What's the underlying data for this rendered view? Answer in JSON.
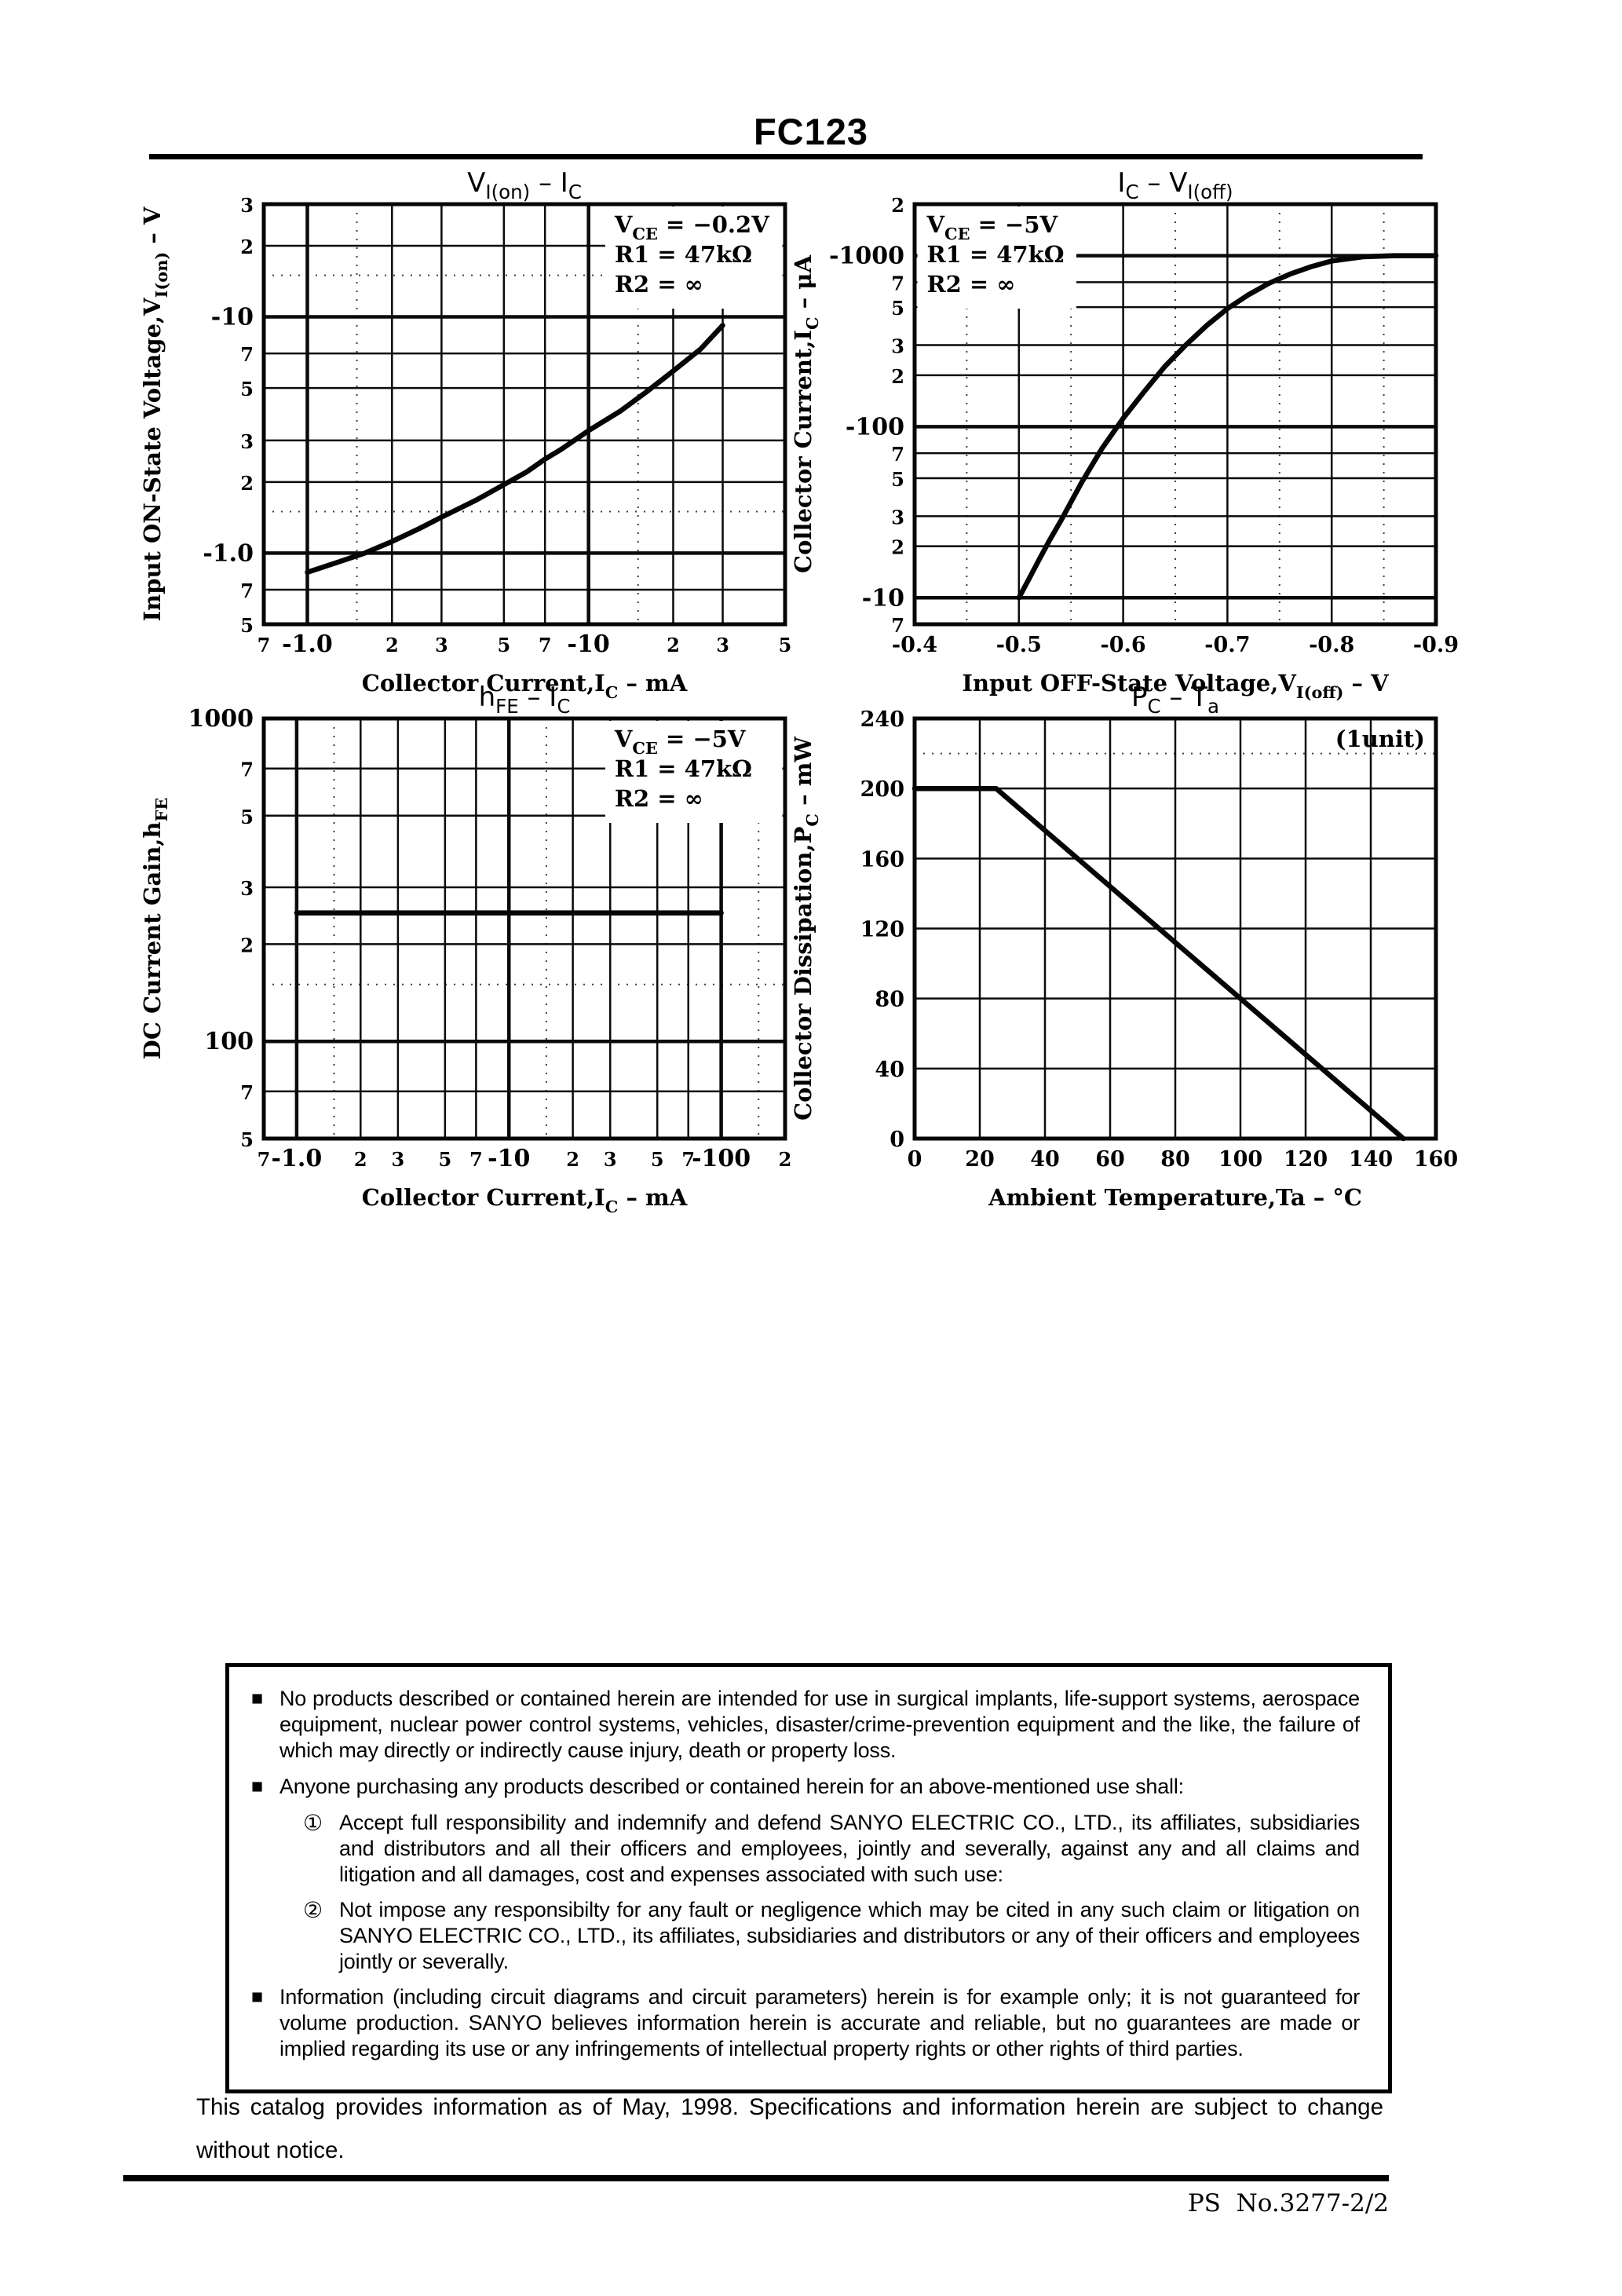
{
  "page": {
    "product": "FC123",
    "footer": {
      "doc_no": "PS  No.3277-2/2"
    },
    "catalog_note": "This catalog provides information as of May, 1998. Specifications and information herein are subject to change without notice.",
    "disclaimer": {
      "bullets": [
        {
          "marker": "■",
          "text": "No products described or contained herein are intended for use in surgical implants, life-support systems, aerospace equipment, nuclear power control systems, vehicles, disaster/crime-prevention equipment and the like, the failure of which may directly or indirectly cause injury, death or property loss."
        },
        {
          "marker": "■",
          "text": "Anyone purchasing any products described or contained herein for an above-mentioned use shall:",
          "items": [
            {
              "marker": "①",
              "text": "Accept full responsibility and indemnify and defend SANYO ELECTRIC CO., LTD., its affiliates, subsidiaries and distributors and all their officers and employees, jointly and severally, against any and all claims and litigation and all damages, cost and expenses associated with such use:"
            },
            {
              "marker": "②",
              "text": "Not impose any responsibilty for any fault or negligence which may be cited in any such claim or litigation on SANYO ELECTRIC CO., LTD., its affiliates, subsidiaries and distributors or any of their officers and employees jointly or severally."
            }
          ]
        },
        {
          "marker": "■",
          "text": "Information (including circuit diagrams and circuit parameters) herein is for example only; it is not guaranteed for volume production. SANYO believes information herein is accurate and reliable, but no guarantees are made or implied regarding its use or any infringements of intellectual property rights or other rights of third parties."
        }
      ]
    }
  },
  "chart_data": [
    {
      "type": "line",
      "title": "VI(on) - IC",
      "xlabel": "Collector Current, IC - mA",
      "ylabel": "Input ON-State Voltage, VI(on) - V",
      "conditions": "VCE = -0.2V, R1 = 47kΩ, R2 = ∞",
      "title_segments": [
        {
          "t": "V"
        },
        {
          "t": "I(on)",
          "sub": true
        },
        {
          "t": "  –  I"
        },
        {
          "t": "C",
          "sub": true
        }
      ],
      "x_axis": {
        "scale": "log",
        "min": -0.7,
        "max": -50,
        "title_segments": [
          {
            "t": "Collector Current,I"
          },
          {
            "t": "C",
            "sub": true
          },
          {
            "t": " – mA"
          }
        ],
        "ticks": [
          {
            "v": -0.7,
            "label": "7",
            "edge": true
          },
          {
            "v": -1.0,
            "label": "-1.0",
            "major": true
          },
          {
            "v": -2,
            "label": "2"
          },
          {
            "v": -3,
            "label": "3"
          },
          {
            "v": -5,
            "label": "5"
          },
          {
            "v": -7,
            "label": "7"
          },
          {
            "v": -10,
            "label": "-10",
            "major": true
          },
          {
            "v": -20,
            "label": "2"
          },
          {
            "v": -30,
            "label": "3"
          },
          {
            "v": -50,
            "label": "5",
            "edge": true
          }
        ],
        "dotted": [
          -1.5,
          -15
        ]
      },
      "y_axis": {
        "scale": "log",
        "min": -0.5,
        "max": -30,
        "title_segments": [
          {
            "t": "Input ON-State Voltage,V"
          },
          {
            "t": "I(on)",
            "sub": true
          },
          {
            "t": " – V"
          }
        ],
        "ticks": [
          {
            "v": -30,
            "label": "3",
            "edge": true
          },
          {
            "v": -20,
            "label": "2"
          },
          {
            "v": -10,
            "label": "-10",
            "major": true
          },
          {
            "v": -7,
            "label": "7"
          },
          {
            "v": -5,
            "label": "5"
          },
          {
            "v": -3,
            "label": "3"
          },
          {
            "v": -2,
            "label": "2"
          },
          {
            "v": -1.0,
            "label": "-1.0",
            "major": true
          },
          {
            "v": -0.7,
            "label": "7"
          },
          {
            "v": -0.5,
            "label": "5",
            "edge": true
          }
        ],
        "dotted": [
          -1.5,
          -15
        ]
      },
      "annotation": {
        "pos": "tr",
        "boxed": false,
        "lines": [
          [
            {
              "t": "V"
            },
            {
              "t": "CE",
              "sub": true
            },
            {
              "t": " = −0.2V"
            }
          ],
          [
            {
              "t": "R1 = 47kΩ"
            }
          ],
          [
            {
              "t": "R2 = ∞"
            }
          ]
        ]
      },
      "series": [
        {
          "name": "VI(on)",
          "points": [
            [
              -1.0,
              -0.83
            ],
            [
              -1.3,
              -0.92
            ],
            [
              -1.6,
              -1.0
            ],
            [
              -2,
              -1.12
            ],
            [
              -2.5,
              -1.27
            ],
            [
              -3,
              -1.42
            ],
            [
              -4,
              -1.68
            ],
            [
              -5,
              -1.95
            ],
            [
              -6,
              -2.2
            ],
            [
              -7,
              -2.5
            ],
            [
              -8,
              -2.75
            ],
            [
              -10,
              -3.3
            ],
            [
              -13,
              -4.0
            ],
            [
              -16,
              -4.8
            ],
            [
              -20,
              -5.9
            ],
            [
              -25,
              -7.3
            ],
            [
              -30,
              -9.2
            ]
          ]
        }
      ]
    },
    {
      "type": "line",
      "title": "IC - VI(off)",
      "xlabel": "Input OFF-State Voltage, VI(off) - V",
      "ylabel": "Collector Current, IC - μA",
      "conditions": "VCE = -5V, R1 = 47kΩ, R2 = ∞",
      "title_segments": [
        {
          "t": "I"
        },
        {
          "t": "C",
          "sub": true
        },
        {
          "t": "  –  V"
        },
        {
          "t": "I(off)",
          "sub": true
        }
      ],
      "x_axis": {
        "scale": "linear",
        "min": -0.4,
        "max": -0.9,
        "title_segments": [
          {
            "t": "Input OFF-State Voltage,V"
          },
          {
            "t": "I(off)",
            "sub": true
          },
          {
            "t": " – V"
          }
        ],
        "ticks": [
          {
            "v": -0.4,
            "label": "-0.4",
            "big": true,
            "edge": true
          },
          {
            "v": -0.5,
            "label": "-0.5",
            "big": true
          },
          {
            "v": -0.6,
            "label": "-0.6",
            "big": true
          },
          {
            "v": -0.7,
            "label": "-0.7",
            "big": true
          },
          {
            "v": -0.8,
            "label": "-0.8",
            "big": true
          },
          {
            "v": -0.9,
            "label": "-0.9",
            "big": true,
            "edge": true
          }
        ],
        "dotted": [
          -0.45,
          -0.55,
          -0.65,
          -0.75,
          -0.85
        ]
      },
      "y_axis": {
        "scale": "log",
        "min": -7,
        "max": -2000,
        "title_segments": [
          {
            "t": "Collector Current,I"
          },
          {
            "t": "C",
            "sub": true
          },
          {
            "t": " – μA"
          }
        ],
        "ticks": [
          {
            "v": -2000,
            "label": "2",
            "edge": true
          },
          {
            "v": -1000,
            "label": "-1000",
            "major": true
          },
          {
            "v": -700,
            "label": "7"
          },
          {
            "v": -500,
            "label": "5"
          },
          {
            "v": -300,
            "label": "3"
          },
          {
            "v": -200,
            "label": "2"
          },
          {
            "v": -100,
            "label": "-100",
            "major": true
          },
          {
            "v": -70,
            "label": "7"
          },
          {
            "v": -50,
            "label": "5"
          },
          {
            "v": -30,
            "label": "3"
          },
          {
            "v": -20,
            "label": "2"
          },
          {
            "v": -10,
            "label": "-10",
            "major": true
          },
          {
            "v": -7,
            "label": "7",
            "edge": true
          }
        ]
      },
      "annotation": {
        "pos": "tl",
        "boxed": false,
        "lines": [
          [
            {
              "t": "V"
            },
            {
              "t": "CE",
              "sub": true
            },
            {
              "t": " = −5V"
            }
          ],
          [
            {
              "t": "R1 = 47kΩ"
            }
          ],
          [
            {
              "t": "R2 = ∞"
            }
          ]
        ]
      },
      "series": [
        {
          "name": "IC",
          "points": [
            [
              -0.5,
              -10
            ],
            [
              -0.51,
              -13
            ],
            [
              -0.52,
              -17
            ],
            [
              -0.53,
              -22
            ],
            [
              -0.54,
              -28
            ],
            [
              -0.56,
              -47
            ],
            [
              -0.58,
              -75
            ],
            [
              -0.6,
              -112
            ],
            [
              -0.62,
              -160
            ],
            [
              -0.64,
              -225
            ],
            [
              -0.66,
              -300
            ],
            [
              -0.68,
              -390
            ],
            [
              -0.7,
              -490
            ],
            [
              -0.72,
              -590
            ],
            [
              -0.74,
              -690
            ],
            [
              -0.76,
              -780
            ],
            [
              -0.78,
              -860
            ],
            [
              -0.8,
              -930
            ],
            [
              -0.83,
              -985
            ],
            [
              -0.86,
              -1000
            ],
            [
              -0.9,
              -1000
            ]
          ]
        }
      ]
    },
    {
      "type": "line",
      "title": "hFE - IC",
      "xlabel": "Collector Current, IC - mA",
      "ylabel": "DC Current Gain, hFE",
      "conditions": "VCE = -5V, R1 = 47kΩ, R2 = ∞",
      "title_segments": [
        {
          "t": "h"
        },
        {
          "t": "FE",
          "sub": true
        },
        {
          "t": "  –  I"
        },
        {
          "t": "C",
          "sub": true
        }
      ],
      "x_axis": {
        "scale": "log",
        "min": -0.7,
        "max": -200,
        "title_segments": [
          {
            "t": "Collector Current,I"
          },
          {
            "t": "C",
            "sub": true
          },
          {
            "t": " – mA"
          }
        ],
        "ticks": [
          {
            "v": -0.7,
            "label": "7",
            "edge": true
          },
          {
            "v": -1.0,
            "label": "-1.0",
            "major": true
          },
          {
            "v": -2,
            "label": "2"
          },
          {
            "v": -3,
            "label": "3"
          },
          {
            "v": -5,
            "label": "5"
          },
          {
            "v": -7,
            "label": "7"
          },
          {
            "v": -10,
            "label": "-10",
            "major": true
          },
          {
            "v": -20,
            "label": "2"
          },
          {
            "v": -30,
            "label": "3"
          },
          {
            "v": -50,
            "label": "5"
          },
          {
            "v": -70,
            "label": "7"
          },
          {
            "v": -100,
            "label": "-100",
            "major": true
          },
          {
            "v": -200,
            "label": "2",
            "edge": true
          }
        ],
        "dotted": [
          -1.5,
          -15,
          -150
        ]
      },
      "y_axis": {
        "scale": "log",
        "min": 50,
        "max": 1000,
        "title_segments": [
          {
            "t": "DC Current Gain,h"
          },
          {
            "t": "FE",
            "sub": true
          }
        ],
        "ticks": [
          {
            "v": 1000,
            "label": "1000",
            "major": true,
            "edge": true
          },
          {
            "v": 700,
            "label": "7"
          },
          {
            "v": 500,
            "label": "5"
          },
          {
            "v": 300,
            "label": "3"
          },
          {
            "v": 200,
            "label": "2"
          },
          {
            "v": 100,
            "label": "100",
            "major": true
          },
          {
            "v": 70,
            "label": "7"
          },
          {
            "v": 50,
            "label": "5",
            "edge": true
          }
        ],
        "dotted": [
          150
        ]
      },
      "annotation": {
        "pos": "tr",
        "boxed": false,
        "lines": [
          [
            {
              "t": "V"
            },
            {
              "t": "CE",
              "sub": true
            },
            {
              "t": " = −5V"
            }
          ],
          [
            {
              "t": "R1 = 47kΩ"
            }
          ],
          [
            {
              "t": "R2 = ∞"
            }
          ]
        ]
      },
      "series": [
        {
          "name": "hFE",
          "points": [
            [
              -1.0,
              250
            ],
            [
              -100,
              250
            ]
          ]
        }
      ]
    },
    {
      "type": "line",
      "title": "PC - Ta",
      "xlabel": "Ambient Temperature, Ta - °C",
      "ylabel": "Collector Dissipation, PC - mW",
      "conditions": "(1unit)",
      "title_segments": [
        {
          "t": "P"
        },
        {
          "t": "C",
          "sub": true
        },
        {
          "t": "  –  T"
        },
        {
          "t": "a",
          "sub": true
        }
      ],
      "x_axis": {
        "scale": "linear",
        "min": 0,
        "max": 160,
        "title_segments": [
          {
            "t": "Ambient Temperature,Ta – °C"
          }
        ],
        "ticks": [
          {
            "v": 0,
            "label": "0",
            "big": true,
            "edge": true
          },
          {
            "v": 20,
            "label": "20",
            "big": true
          },
          {
            "v": 40,
            "label": "40",
            "big": true
          },
          {
            "v": 60,
            "label": "60",
            "big": true
          },
          {
            "v": 80,
            "label": "80",
            "big": true
          },
          {
            "v": 100,
            "label": "100",
            "big": true
          },
          {
            "v": 120,
            "label": "120",
            "big": true
          },
          {
            "v": 140,
            "label": "140",
            "big": true
          },
          {
            "v": 160,
            "label": "160",
            "big": true,
            "edge": true
          }
        ]
      },
      "y_axis": {
        "scale": "linear",
        "min": 0,
        "max": 240,
        "title_segments": [
          {
            "t": "Collector Dissipation,P"
          },
          {
            "t": "C",
            "sub": true
          },
          {
            "t": " – mW"
          }
        ],
        "ticks": [
          {
            "v": 240,
            "label": "240",
            "big": true,
            "edge": true
          },
          {
            "v": 200,
            "label": "200",
            "big": true
          },
          {
            "v": 160,
            "label": "160",
            "big": true
          },
          {
            "v": 120,
            "label": "120",
            "big": true
          },
          {
            "v": 80,
            "label": "80",
            "big": true
          },
          {
            "v": 40,
            "label": "40",
            "big": true
          },
          {
            "v": 0,
            "label": "0",
            "big": true,
            "edge": true
          }
        ],
        "dotted": [
          220
        ]
      },
      "annotation": {
        "pos": "tr",
        "boxed": false,
        "align": "right",
        "lines": [
          [
            {
              "t": "(1unit)"
            }
          ]
        ]
      },
      "series": [
        {
          "name": "PC",
          "points": [
            [
              0,
              200
            ],
            [
              25,
              200
            ],
            [
              150,
              0
            ]
          ]
        }
      ]
    }
  ]
}
